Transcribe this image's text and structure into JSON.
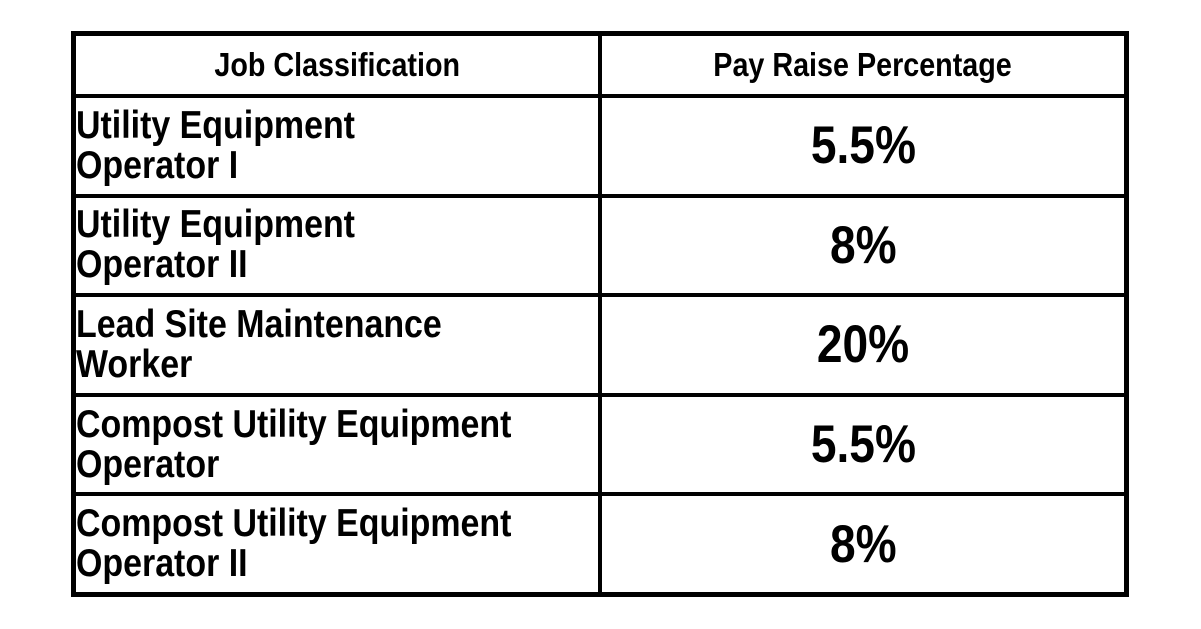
{
  "page": {
    "background": "#ffffff",
    "text_color": "#000000",
    "border_color": "#000000"
  },
  "table": {
    "headers": [
      {
        "label": "Job Classification"
      },
      {
        "label": "Pay Raise Percentage"
      }
    ],
    "rows": [
      {
        "job_lines": [
          "Utility Equipment",
          "Operator I"
        ],
        "raise": "5.5%"
      },
      {
        "job_lines": [
          "Utility Equipment",
          "Operator II"
        ],
        "raise": "8%"
      },
      {
        "job_lines": [
          "Lead Site Maintenance",
          "Worker"
        ],
        "raise": "20%"
      },
      {
        "job_lines": [
          "Compost Utility Equipment",
          "Operator"
        ],
        "raise": "5.5%"
      },
      {
        "job_lines": [
          "Compost Utility Equipment",
          "Operator II"
        ],
        "raise": "8%"
      }
    ]
  }
}
